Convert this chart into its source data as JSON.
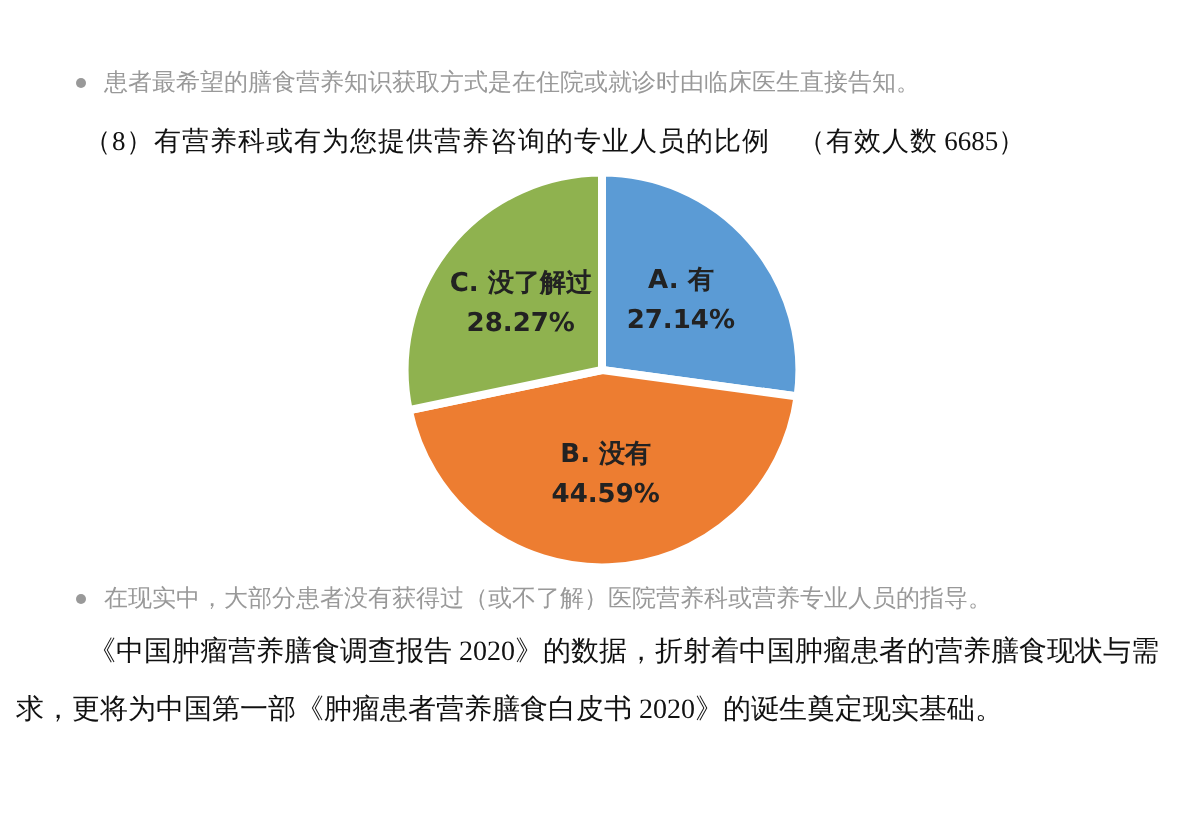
{
  "chart_data": {
    "type": "pie",
    "title": "（8）有营养科或有为您提供营养咨询的专业人员的比例　（有效人数 6685）",
    "categories": [
      "A. 有",
      "B. 没有",
      "C. 没了解过"
    ],
    "values": [
      27.14,
      44.59,
      28.27
    ],
    "value_labels": [
      "27.14%",
      "44.59%",
      "28.27%"
    ],
    "colors": [
      "#5b9bd5",
      "#ed7d31",
      "#8fb24f"
    ],
    "annotations": [
      "患者最希望的膳食营养知识获取方式是在住院或就诊时由临床医生直接告知。",
      "在现实中，大部分患者没有获得过（或不了解）医院营养科或营养专业人员的指导。",
      "《中国肿瘤营养膳食调查报告 2020》的数据，折射着中国肿瘤患者的营养膳食现状与需求，更将为中国第一部《肿瘤患者营养膳食白皮书 2020》的诞生奠定现实基础。"
    ]
  }
}
